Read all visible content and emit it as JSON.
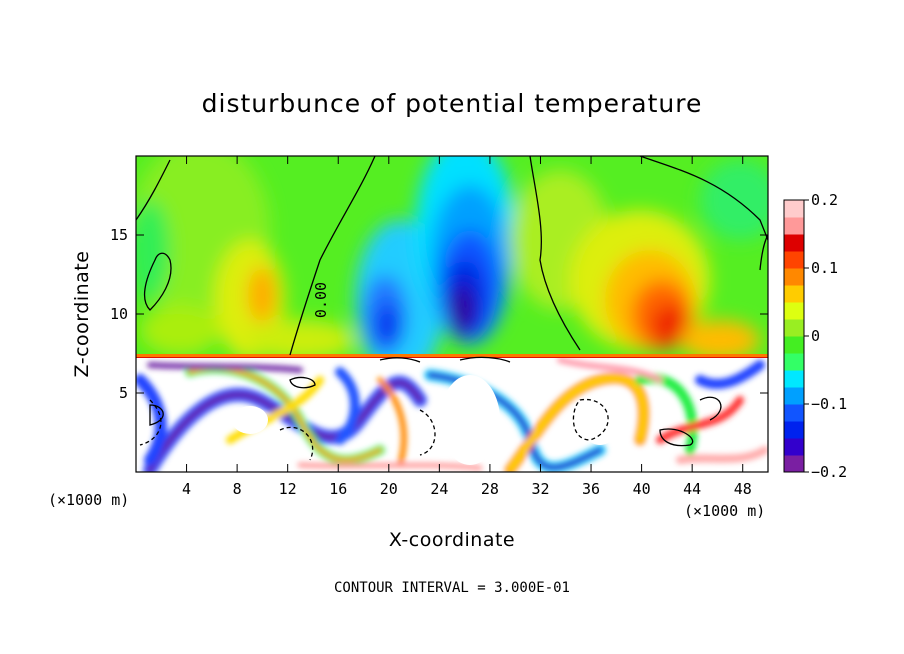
{
  "chart_data": {
    "type": "heatmap",
    "title": "disturbunce of potential temperature",
    "xlabel": "X-coordinate",
    "ylabel": "Z-coordinate",
    "x_unit_left": "(×1000 m)",
    "x_unit_right": "(×1000 m)",
    "xlim": [
      0,
      50
    ],
    "ylim": [
      0,
      20
    ],
    "x_ticks": [
      4,
      8,
      12,
      16,
      20,
      24,
      28,
      32,
      36,
      40,
      44,
      48
    ],
    "y_ticks": [
      5,
      10,
      15
    ],
    "colorbar": {
      "range": [
        -0.2,
        0.2
      ],
      "tick_labels": [
        "0.2",
        "0.1",
        "0",
        "−0.1",
        "−0.2"
      ],
      "tick_values": [
        0.2,
        0.1,
        0,
        -0.1,
        -0.2
      ],
      "colors": [
        "#7a1fa2",
        "#3300cc",
        "#0022ee",
        "#1155ff",
        "#00a0ff",
        "#00e8ff",
        "#33ff66",
        "#44ee22",
        "#99ee22",
        "#ddff11",
        "#ffcc00",
        "#ff8800",
        "#ff4400",
        "#dd0000",
        "#ff9999",
        "#ffcccc"
      ]
    },
    "contour_label": "0.00",
    "footer": "CONTOUR INTERVAL = 3.000E-01",
    "features": [
      {
        "x": 26.5,
        "z": 11,
        "value": -0.19,
        "kind": "cold core"
      },
      {
        "x": 22,
        "z": 10,
        "value": -0.13,
        "kind": "cold lobe"
      },
      {
        "x": 10,
        "z": 11.5,
        "value": 0.08,
        "kind": "warm patch"
      },
      {
        "x": 42.5,
        "z": 9.5,
        "value": 0.14,
        "kind": "warm core"
      },
      {
        "x": 4,
        "z": 10,
        "value": 0.04,
        "kind": "warm patch"
      }
    ]
  }
}
